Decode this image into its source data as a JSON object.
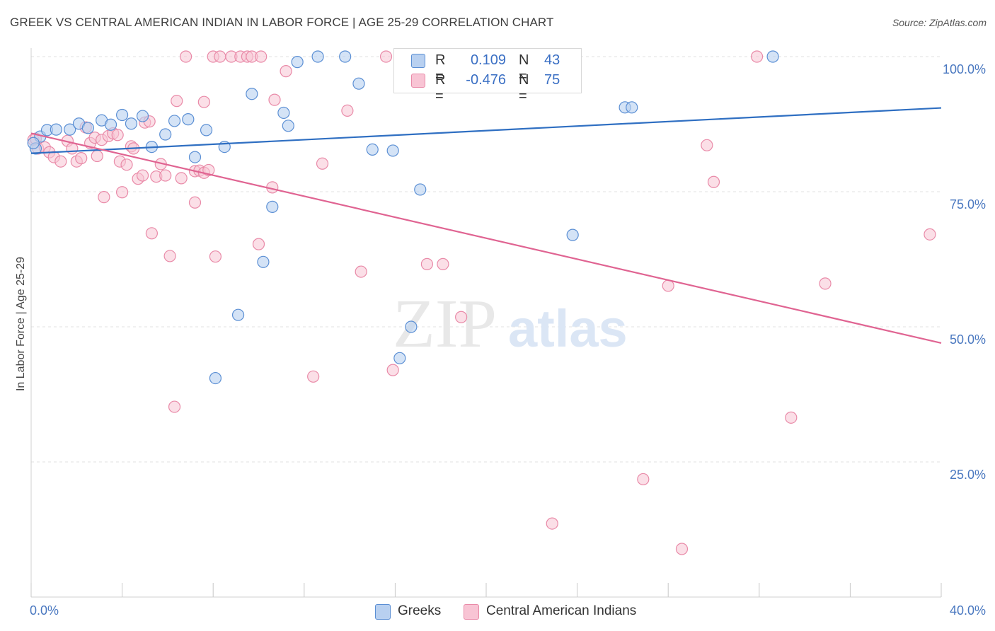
{
  "header": {
    "title": "GREEK VS CENTRAL AMERICAN INDIAN IN LABOR FORCE | AGE 25-29 CORRELATION CHART",
    "source": "Source: ZipAtlas.com"
  },
  "watermark": {
    "zip": "ZIP",
    "atlas": "atlas"
  },
  "legend": {
    "series": [
      {
        "r_label": "R =",
        "r_value": "0.109",
        "n_label": "N =",
        "n_value": "43"
      },
      {
        "r_label": "R =",
        "r_value": "-0.476",
        "n_label": "N =",
        "n_value": "75"
      }
    ]
  },
  "bottom_legend": {
    "greeks": "Greeks",
    "cai": "Central American Indians"
  },
  "colors": {
    "blue_fill": "#b8d0f0",
    "blue_stroke": "#5b8fd4",
    "blue_line": "#2f6fc2",
    "pink_fill": "#f8c4d4",
    "pink_stroke": "#e98aa8",
    "pink_line": "#e06492",
    "tick_color": "#4a78c0"
  },
  "chart_data": {
    "type": "scatter",
    "title": "GREEK VS CENTRAL AMERICAN INDIAN IN LABOR FORCE | AGE 25-29 CORRELATION CHART",
    "xlabel": "",
    "ylabel": "In Labor Force | Age 25-29",
    "xlim": [
      0,
      40
    ],
    "ylim": [
      0,
      100
    ],
    "x_tick_labels": [
      "0.0%",
      "40.0%"
    ],
    "y_ticks": [
      25,
      50,
      75,
      100
    ],
    "y_tick_labels": [
      "25.0%",
      "50.0%",
      "75.0%",
      "100.0%"
    ],
    "grid": true,
    "legend_position": "top-center",
    "series": [
      {
        "name": "Greeks",
        "color": "#5b8fd4",
        "trend": {
          "x": [
            0,
            40
          ],
          "y": [
            82.1,
            90.5
          ]
        },
        "points": [
          {
            "x": 0.2,
            "y": 83.0
          },
          {
            "x": 0.4,
            "y": 85.2
          },
          {
            "x": 0.7,
            "y": 86.4
          },
          {
            "x": 1.1,
            "y": 86.5
          },
          {
            "x": 1.7,
            "y": 86.5
          },
          {
            "x": 2.1,
            "y": 87.6
          },
          {
            "x": 2.5,
            "y": 86.8
          },
          {
            "x": 3.1,
            "y": 88.2
          },
          {
            "x": 3.5,
            "y": 87.4
          },
          {
            "x": 4.0,
            "y": 89.2
          },
          {
            "x": 4.4,
            "y": 87.6
          },
          {
            "x": 4.9,
            "y": 89.0
          },
          {
            "x": 5.3,
            "y": 83.3
          },
          {
            "x": 5.9,
            "y": 85.6
          },
          {
            "x": 6.3,
            "y": 88.1
          },
          {
            "x": 6.9,
            "y": 88.4
          },
          {
            "x": 7.2,
            "y": 81.4
          },
          {
            "x": 7.7,
            "y": 86.4
          },
          {
            "x": 8.1,
            "y": 40.5
          },
          {
            "x": 8.5,
            "y": 83.3
          },
          {
            "x": 9.1,
            "y": 52.2
          },
          {
            "x": 9.7,
            "y": 93.1
          },
          {
            "x": 10.2,
            "y": 62.0
          },
          {
            "x": 10.6,
            "y": 72.2
          },
          {
            "x": 11.1,
            "y": 89.6
          },
          {
            "x": 11.3,
            "y": 87.2
          },
          {
            "x": 11.7,
            "y": 99.0
          },
          {
            "x": 12.6,
            "y": 100.0
          },
          {
            "x": 13.8,
            "y": 100.0
          },
          {
            "x": 14.4,
            "y": 95.0
          },
          {
            "x": 15.0,
            "y": 82.8
          },
          {
            "x": 15.9,
            "y": 82.6
          },
          {
            "x": 16.2,
            "y": 44.2
          },
          {
            "x": 16.7,
            "y": 50.0
          },
          {
            "x": 17.1,
            "y": 75.4
          },
          {
            "x": 18.3,
            "y": 100.0
          },
          {
            "x": 19.1,
            "y": 100.0
          },
          {
            "x": 21.0,
            "y": 100.0
          },
          {
            "x": 23.8,
            "y": 67.0
          },
          {
            "x": 26.1,
            "y": 90.6
          },
          {
            "x": 26.4,
            "y": 90.6
          },
          {
            "x": 32.6,
            "y": 100.0
          },
          {
            "x": 0.1,
            "y": 84.0
          }
        ]
      },
      {
        "name": "Central American Indians",
        "color": "#e98aa8",
        "trend": {
          "x": [
            0,
            40
          ],
          "y": [
            85.8,
            47.0
          ]
        },
        "points": [
          {
            "x": 0.1,
            "y": 84.6
          },
          {
            "x": 0.3,
            "y": 83.0
          },
          {
            "x": 0.6,
            "y": 83.2
          },
          {
            "x": 0.8,
            "y": 82.3
          },
          {
            "x": 1.0,
            "y": 81.4
          },
          {
            "x": 1.3,
            "y": 80.6
          },
          {
            "x": 1.6,
            "y": 84.4
          },
          {
            "x": 1.8,
            "y": 83.0
          },
          {
            "x": 2.0,
            "y": 80.6
          },
          {
            "x": 2.2,
            "y": 81.2
          },
          {
            "x": 2.4,
            "y": 86.9
          },
          {
            "x": 2.6,
            "y": 84.0
          },
          {
            "x": 2.8,
            "y": 85.0
          },
          {
            "x": 2.9,
            "y": 81.6
          },
          {
            "x": 3.1,
            "y": 84.6
          },
          {
            "x": 3.2,
            "y": 74.0
          },
          {
            "x": 3.4,
            "y": 85.3
          },
          {
            "x": 3.6,
            "y": 85.8
          },
          {
            "x": 3.8,
            "y": 85.5
          },
          {
            "x": 3.9,
            "y": 80.6
          },
          {
            "x": 4.0,
            "y": 74.9
          },
          {
            "x": 4.2,
            "y": 80.0
          },
          {
            "x": 4.4,
            "y": 83.4
          },
          {
            "x": 4.5,
            "y": 83.0
          },
          {
            "x": 4.7,
            "y": 77.4
          },
          {
            "x": 4.9,
            "y": 78.0
          },
          {
            "x": 5.0,
            "y": 87.8
          },
          {
            "x": 5.2,
            "y": 88.0
          },
          {
            "x": 5.3,
            "y": 67.3
          },
          {
            "x": 5.5,
            "y": 77.8
          },
          {
            "x": 5.7,
            "y": 80.1
          },
          {
            "x": 5.9,
            "y": 78.0
          },
          {
            "x": 6.1,
            "y": 63.1
          },
          {
            "x": 6.3,
            "y": 35.2
          },
          {
            "x": 6.4,
            "y": 91.8
          },
          {
            "x": 6.6,
            "y": 77.5
          },
          {
            "x": 6.8,
            "y": 100.0
          },
          {
            "x": 7.2,
            "y": 73.0
          },
          {
            "x": 7.2,
            "y": 78.8
          },
          {
            "x": 7.4,
            "y": 78.9
          },
          {
            "x": 7.6,
            "y": 91.6
          },
          {
            "x": 7.6,
            "y": 78.5
          },
          {
            "x": 7.8,
            "y": 79.0
          },
          {
            "x": 8.0,
            "y": 100.0
          },
          {
            "x": 8.1,
            "y": 63.0
          },
          {
            "x": 8.3,
            "y": 100.0
          },
          {
            "x": 8.8,
            "y": 100.0
          },
          {
            "x": 9.2,
            "y": 100.0
          },
          {
            "x": 9.5,
            "y": 100.0
          },
          {
            "x": 9.7,
            "y": 100.0
          },
          {
            "x": 10.0,
            "y": 65.3
          },
          {
            "x": 10.1,
            "y": 100.0
          },
          {
            "x": 10.6,
            "y": 75.8
          },
          {
            "x": 10.7,
            "y": 92.0
          },
          {
            "x": 11.2,
            "y": 97.3
          },
          {
            "x": 12.4,
            "y": 40.8
          },
          {
            "x": 12.8,
            "y": 80.2
          },
          {
            "x": 13.9,
            "y": 90.0
          },
          {
            "x": 14.5,
            "y": 60.2
          },
          {
            "x": 15.6,
            "y": 100.0
          },
          {
            "x": 15.9,
            "y": 42.0
          },
          {
            "x": 17.4,
            "y": 61.6
          },
          {
            "x": 18.1,
            "y": 61.6
          },
          {
            "x": 18.9,
            "y": 51.8
          },
          {
            "x": 22.9,
            "y": 13.6
          },
          {
            "x": 26.9,
            "y": 21.8
          },
          {
            "x": 28.0,
            "y": 57.6
          },
          {
            "x": 28.6,
            "y": 8.9
          },
          {
            "x": 29.7,
            "y": 83.6
          },
          {
            "x": 30.0,
            "y": 76.8
          },
          {
            "x": 31.9,
            "y": 100.0
          },
          {
            "x": 33.4,
            "y": 33.2
          },
          {
            "x": 34.9,
            "y": 58.0
          },
          {
            "x": 39.5,
            "y": 67.1
          },
          {
            "x": 0.2,
            "y": 84.8
          }
        ]
      }
    ]
  }
}
